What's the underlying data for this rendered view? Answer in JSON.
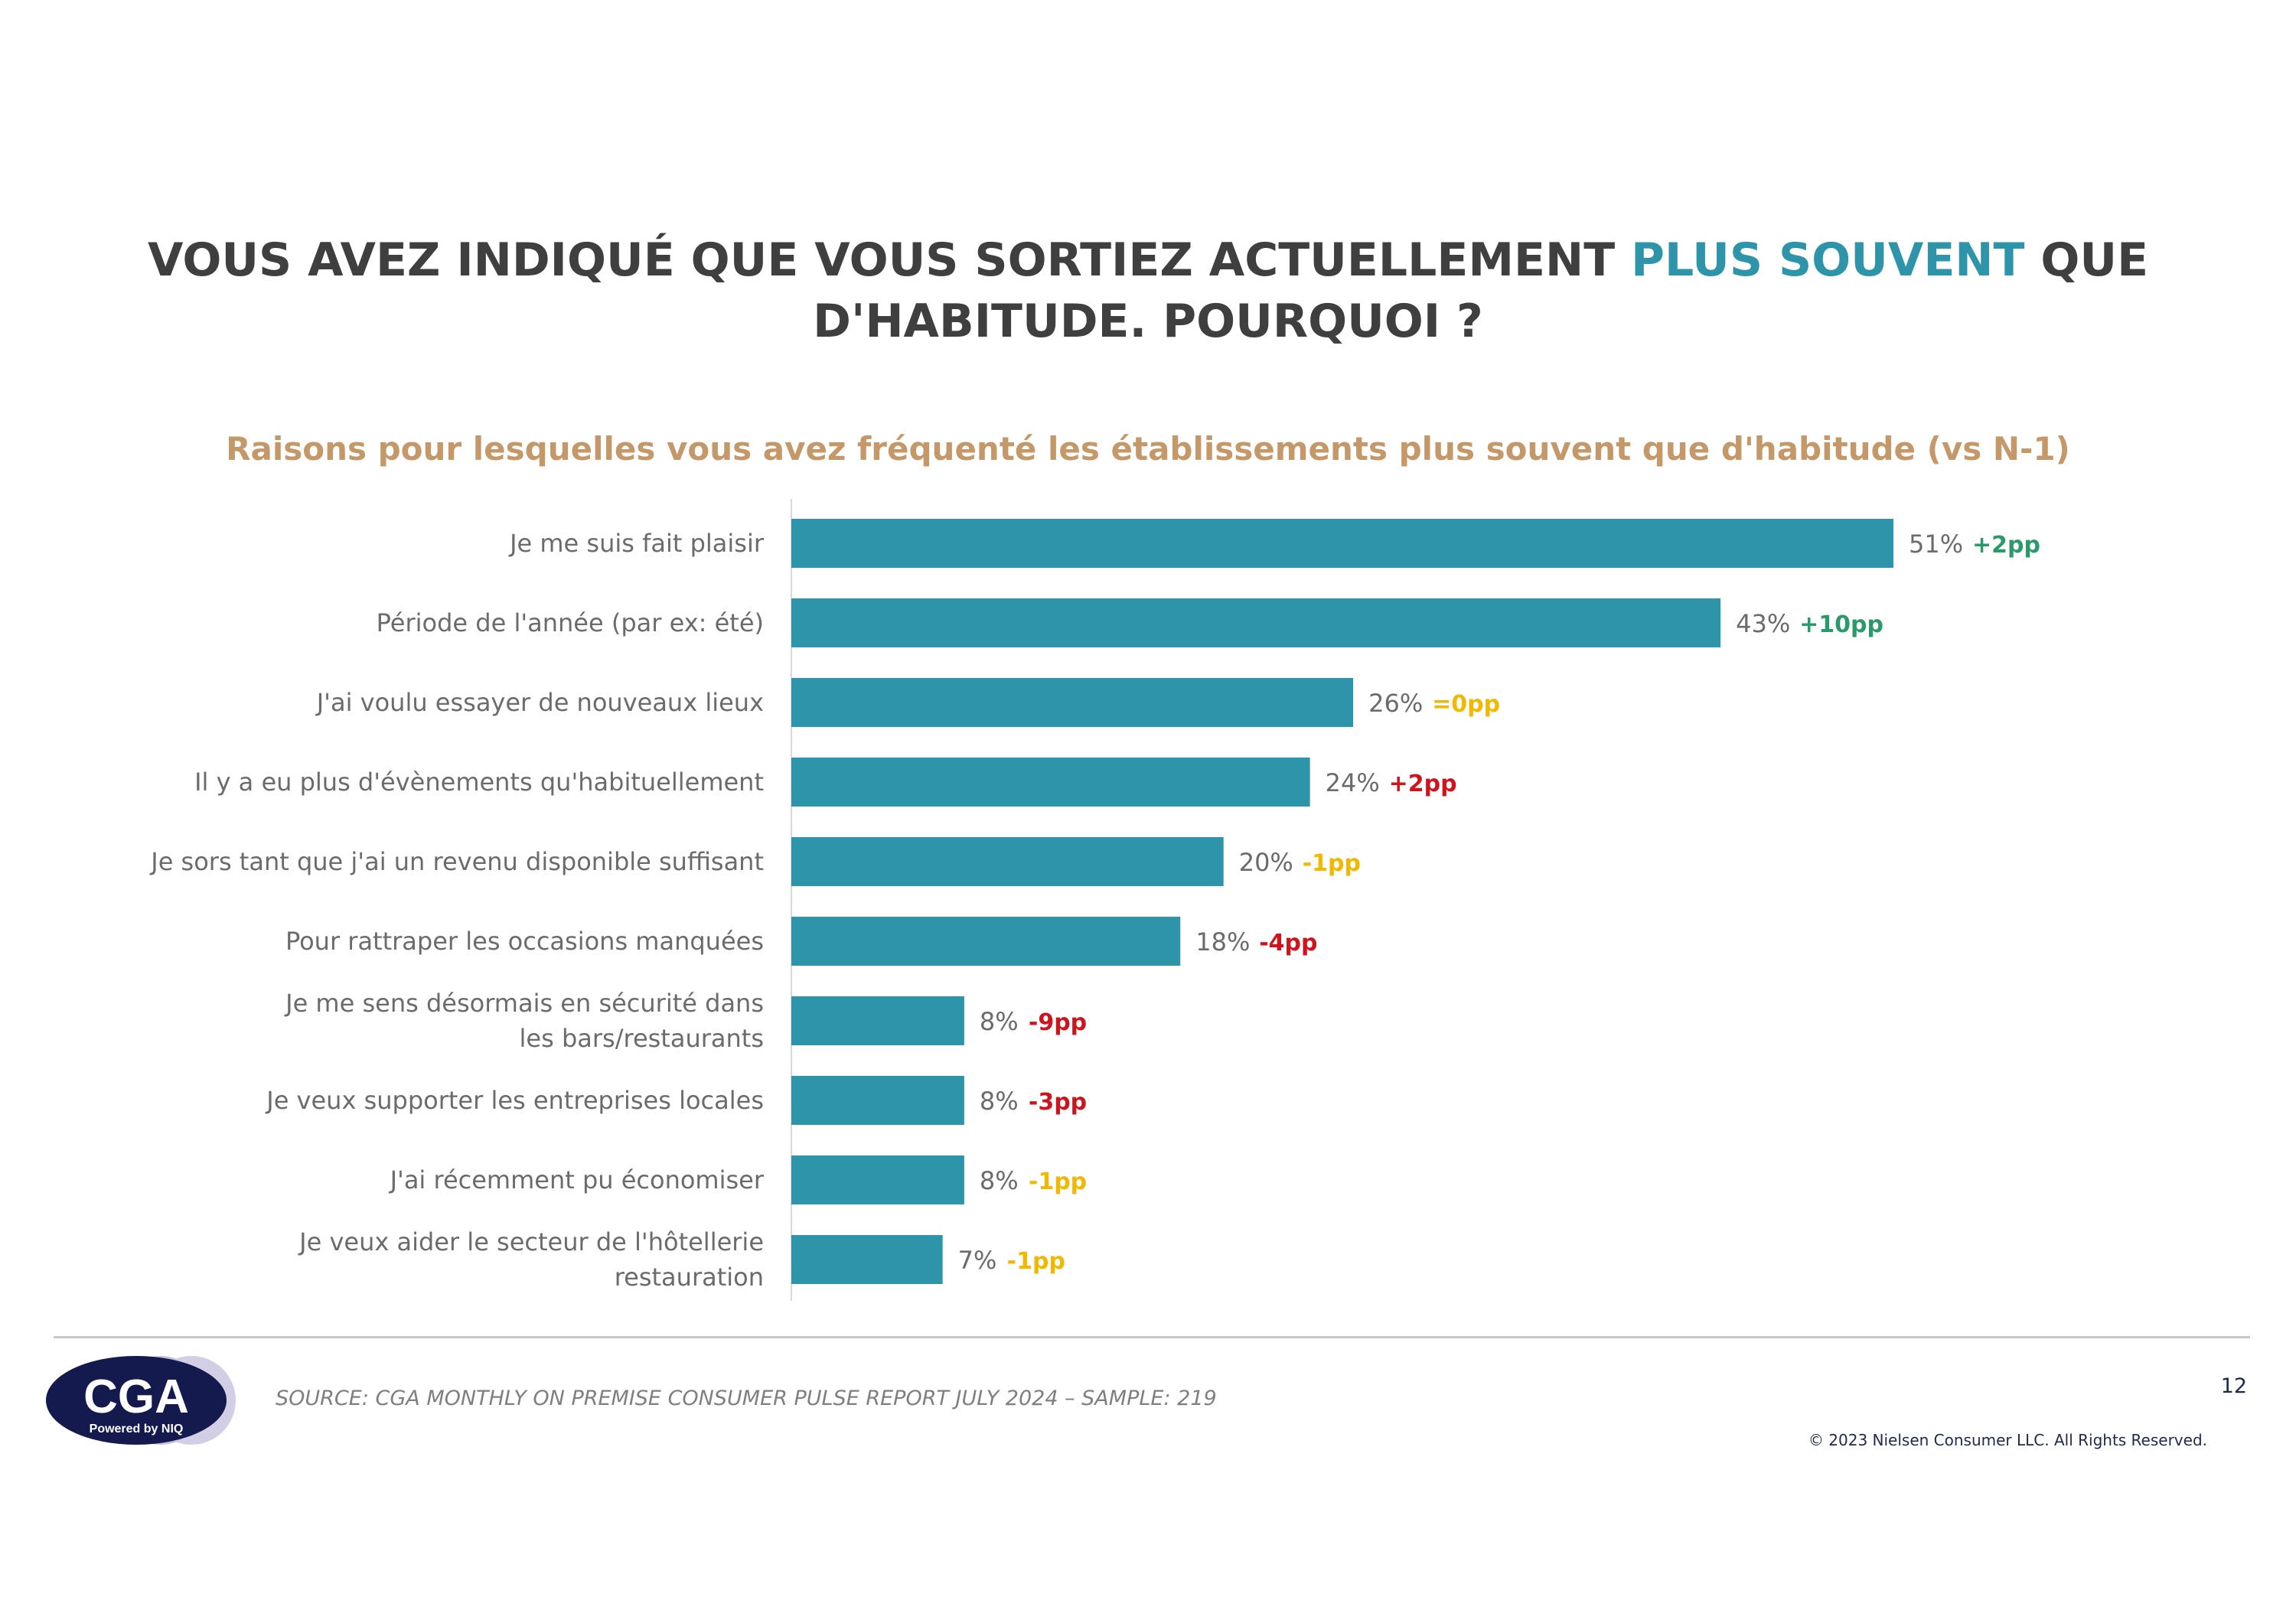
{
  "title": {
    "part1": "VOUS AVEZ INDIQUÉ QUE VOUS SORTIEZ ACTUELLEMENT ",
    "highlight": "PLUS SOUVENT",
    "part2": " QUE",
    "line2": "D'HABITUDE. POURQUOI ?"
  },
  "colors": {
    "bar": "#2e94aa",
    "title": "#3f3f3f",
    "highlight": "#2e94aa",
    "subtitle": "#c49868",
    "positive_green": "#2b9a6a",
    "negative_red": "#d0141e",
    "neutral_yellow": "#f2b800"
  },
  "chart_data": {
    "type": "bar",
    "orientation": "horizontal",
    "title": "Raisons pour lesquelles vous avez fréquenté les établissements plus souvent que d'habitude (vs N-1)",
    "categories": [
      "Je me suis fait plaisir",
      "Période de l'année (par ex: été)",
      "J'ai voulu essayer de nouveaux lieux",
      "Il y a eu plus d'évènements qu'habituellement",
      "Je sors tant que j'ai un revenu disponible suffisant",
      "Pour rattraper les occasions manquées",
      "Je me sens désormais en sécurité dans les bars/restaurants",
      "Je veux supporter les entreprises locales",
      "J'ai récemment pu économiser",
      "Je veux aider le secteur de l'hôtellerie restauration"
    ],
    "values": [
      51,
      43,
      26,
      24,
      20,
      18,
      8,
      8,
      8,
      7
    ],
    "value_labels": [
      "51%",
      "43%",
      "26%",
      "24%",
      "20%",
      "18%",
      "8%",
      "8%",
      "8%",
      "7%"
    ],
    "deltas": [
      "+2pp",
      "+10pp",
      "=0pp",
      "+2pp",
      "-1pp",
      "-4pp",
      "-9pp",
      "-3pp",
      "-1pp",
      "-1pp"
    ],
    "delta_colors": [
      "green",
      "green",
      "yellow",
      "red",
      "yellow",
      "red",
      "red",
      "red",
      "yellow",
      "yellow"
    ],
    "xlim": [
      0,
      51
    ],
    "grid": false,
    "legend": "none"
  },
  "footer": {
    "source": "SOURCE: CGA MONTHLY ON PREMISE CONSUMER PULSE REPORT JULY 2024 – SAMPLE: 219",
    "page_number": "12",
    "copyright": "© 2023 Nielsen Consumer LLC. All Rights Reserved.",
    "logo_text": "CGA",
    "logo_subtext": "Powered by NIQ"
  }
}
